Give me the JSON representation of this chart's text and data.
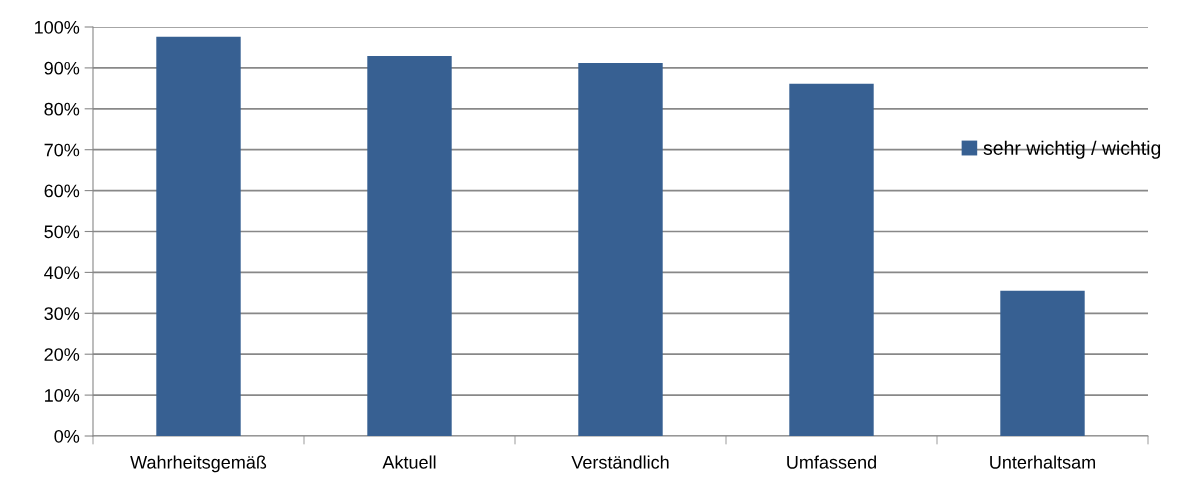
{
  "chart_data": {
    "type": "bar",
    "categories": [
      "Wahrheitsgemäß",
      "Aktuell",
      "Verständlich",
      "Umfassend",
      "Unterhaltsam"
    ],
    "series": [
      {
        "name": "sehr wichtig / wichtig",
        "color": "#376092",
        "values": [
          97.6,
          92.9,
          91.2,
          86.1,
          35.5
        ]
      }
    ],
    "ylim": [
      0,
      100
    ],
    "yticks": [
      {
        "value": 0,
        "label": "0%"
      },
      {
        "value": 10,
        "label": "10%"
      },
      {
        "value": 20,
        "label": "20%"
      },
      {
        "value": 30,
        "label": "30%"
      },
      {
        "value": 40,
        "label": "40%"
      },
      {
        "value": 50,
        "label": "50%"
      },
      {
        "value": 60,
        "label": "60%"
      },
      {
        "value": 70,
        "label": "70%"
      },
      {
        "value": 80,
        "label": "80%"
      },
      {
        "value": 90,
        "label": "90%"
      },
      {
        "value": 100,
        "label": "100%"
      }
    ],
    "grid": "y",
    "legend": "right"
  }
}
